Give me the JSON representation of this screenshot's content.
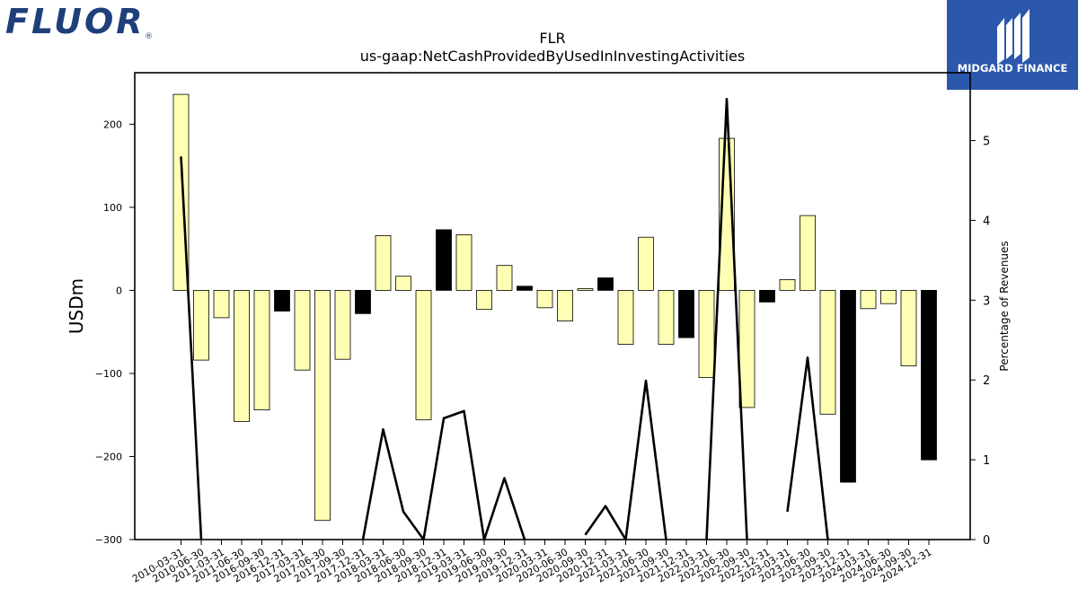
{
  "branding": {
    "company_logo_text": "FLUOR",
    "company_logo_mark": "®",
    "publisher_logo_text": "MIDGARD FINANCE",
    "brand_color": "#1f3f7a",
    "publisher_color": "#2b58ab"
  },
  "chart_data": {
    "type": "bar",
    "title": "FLR",
    "subtitle": "us-gaap:NetCashProvidedByUsedInInvestingActivities",
    "ylabel": "USDm",
    "y2label": "Percentage of Revenues",
    "ylim": [
      -300,
      262
    ],
    "y2lim": [
      0,
      5.85
    ],
    "yticks": [
      -300,
      -200,
      -100,
      0,
      100,
      200
    ],
    "y2ticks": [
      0,
      1,
      2,
      3,
      4,
      5
    ],
    "categories": [
      "2010-03-31",
      "2010-06-30",
      "2011-03-31",
      "2011-06-30",
      "2016-09-30",
      "2016-12-31",
      "2017-03-31",
      "2017-06-30",
      "2017-09-30",
      "2017-12-31",
      "2018-03-31",
      "2018-06-30",
      "2018-09-30",
      "2018-12-31",
      "2019-03-31",
      "2019-06-30",
      "2019-09-30",
      "2019-12-31",
      "2020-03-31",
      "2020-06-30",
      "2020-09-30",
      "2020-12-31",
      "2021-03-31",
      "2021-06-30",
      "2021-09-30",
      "2021-12-31",
      "2022-03-31",
      "2022-06-30",
      "2022-09-30",
      "2022-12-31",
      "2023-03-31",
      "2023-06-30",
      "2023-09-30",
      "2023-12-31",
      "2024-03-31",
      "2024-06-30",
      "2024-09-30",
      "2024-12-31"
    ],
    "series": [
      {
        "type": "bar",
        "values": [
          236,
          -84,
          -33,
          -158,
          -144,
          -25,
          -96,
          -277,
          -83,
          -28,
          66,
          17,
          -156,
          73,
          67,
          -23,
          30,
          5,
          -21,
          -37,
          2,
          15,
          -65,
          64,
          -65,
          -57,
          -105,
          183,
          -141,
          -14,
          13,
          90,
          -149,
          -231,
          -22,
          -16,
          -91,
          -204
        ],
        "colors": [
          "#ffffb3",
          "#ffffb3",
          "#ffffb3",
          "#ffffb3",
          "#ffffb3",
          "#000000",
          "#ffffb3",
          "#ffffb3",
          "#ffffb3",
          "#000000",
          "#ffffb3",
          "#ffffb3",
          "#ffffb3",
          "#000000",
          "#ffffb3",
          "#ffffb3",
          "#ffffb3",
          "#000000",
          "#ffffb3",
          "#ffffb3",
          "#ffffb3",
          "#000000",
          "#ffffb3",
          "#ffffb3",
          "#ffffb3",
          "#000000",
          "#ffffb3",
          "#ffffb3",
          "#ffffb3",
          "#000000",
          "#ffffb3",
          "#ffffb3",
          "#ffffb3",
          "#000000",
          "#ffffb3",
          "#ffffb3",
          "#ffffb3",
          "#000000"
        ]
      },
      {
        "type": "line",
        "axis": "right",
        "color": "#000000",
        "values": [
          4.8,
          0,
          null,
          null,
          null,
          null,
          null,
          null,
          null,
          0,
          1.38,
          0.35,
          0,
          1.52,
          1.61,
          0,
          0.77,
          0,
          null,
          null,
          0.06,
          0.42,
          0,
          1.99,
          0,
          null,
          0,
          5.52,
          0,
          null,
          0.35,
          2.28,
          0,
          null,
          null,
          null,
          null,
          null
        ]
      }
    ],
    "legend": "none",
    "grid": false
  }
}
